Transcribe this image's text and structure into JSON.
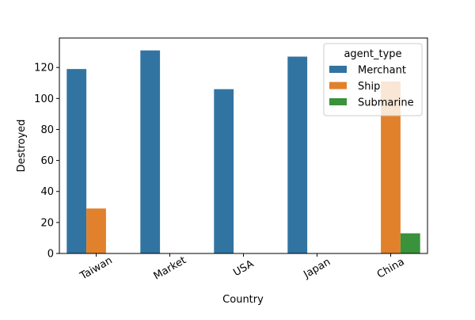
{
  "chart_data": {
    "type": "bar",
    "title": "",
    "xlabel": "Country",
    "ylabel": "Destroyed",
    "categories": [
      "Taiwan",
      "Market",
      "USA",
      "Japan",
      "China"
    ],
    "series": [
      {
        "name": "Merchant",
        "color": "#3274a1",
        "values": [
          119,
          131,
          106,
          127,
          null
        ]
      },
      {
        "name": "Ship",
        "color": "#e1812c",
        "values": [
          29,
          null,
          null,
          null,
          111
        ]
      },
      {
        "name": "Submarine",
        "color": "#3a923a",
        "values": [
          null,
          null,
          null,
          null,
          13
        ]
      }
    ],
    "ylim": [
      0,
      139
    ],
    "yticks": [
      0,
      20,
      40,
      60,
      80,
      100,
      120
    ],
    "ytick_labels": [
      "0",
      "20",
      "40",
      "60",
      "80",
      "100",
      "120"
    ],
    "grid": false,
    "legend": {
      "title": "agent_type",
      "placement": "top-right",
      "entries": [
        "Merchant",
        "Ship",
        "Submarine"
      ]
    },
    "xtick_rotation_deg": 30
  }
}
